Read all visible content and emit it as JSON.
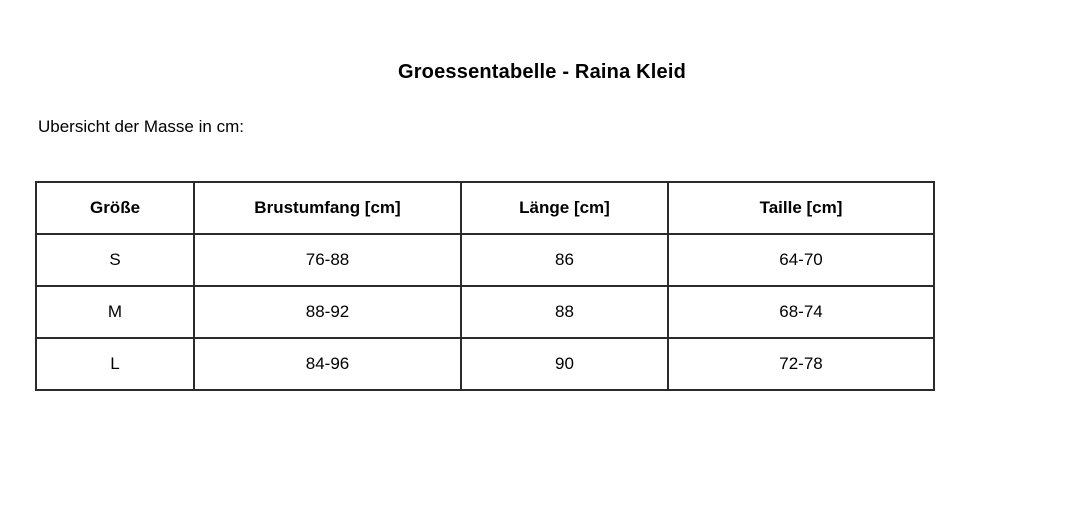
{
  "page": {
    "title": "Groessentabelle - Raina Kleid",
    "subtitle": "Ubersicht der Masse in cm:"
  },
  "table": {
    "headers": [
      "Größe",
      "Brustumfang [cm]",
      "Länge [cm]",
      "Taille [cm]"
    ],
    "rows": [
      [
        "S",
        "76-88",
        "86",
        "64-70"
      ],
      [
        "M",
        "88-92",
        "88",
        "68-74"
      ],
      [
        "L",
        "84-96",
        "90",
        "72-78"
      ]
    ]
  },
  "colors": {
    "background": "#ffffff",
    "text": "#000000",
    "table_border": "#2b2b2b"
  }
}
